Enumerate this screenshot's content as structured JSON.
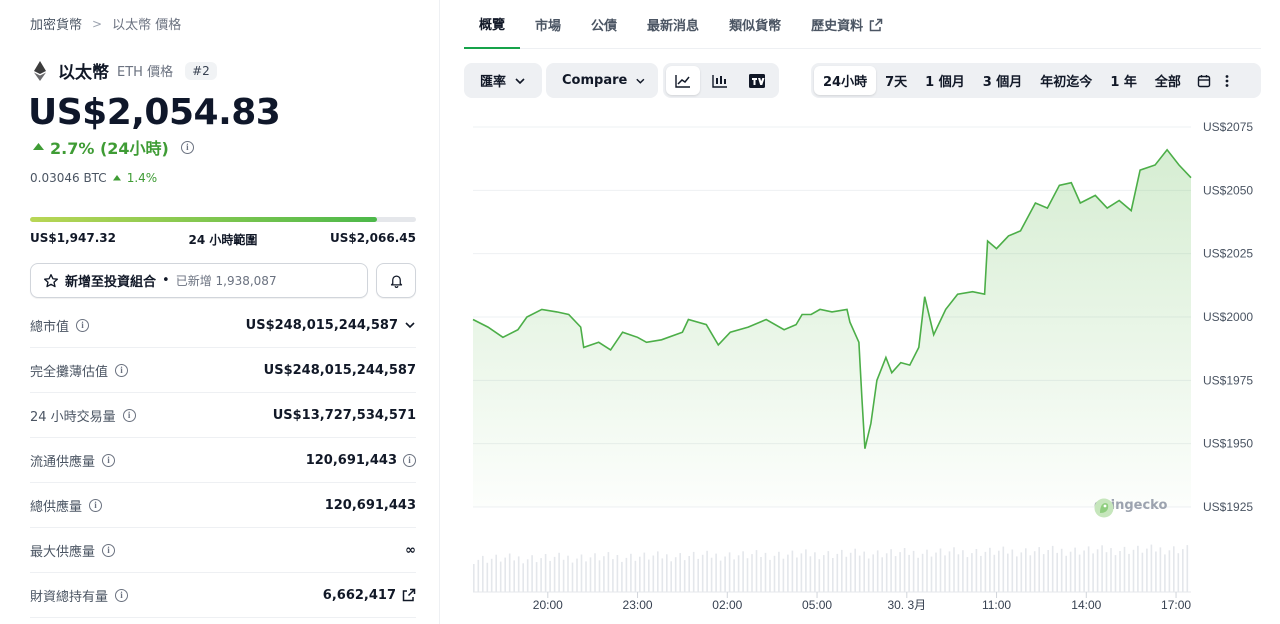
{
  "breadcrumb": {
    "root": "加密貨幣",
    "separator": ">",
    "current": "以太幣 價格"
  },
  "coin": {
    "name": "以太幣",
    "subtitle": "ETH 價格",
    "rank": "#2",
    "logo_icon": "ethereum-icon"
  },
  "price": "US$2,054.83",
  "change_24h": "2.7% (24小時)",
  "btc": {
    "price": "0.03046 BTC",
    "change": "1.4%"
  },
  "range": {
    "low": "US$1,947.32",
    "label": "24 小時範圍",
    "high": "US$2,066.45",
    "position": 0.9
  },
  "portfolio": {
    "label": "新增至投資組合",
    "dot": "•",
    "added": "已新增 1,938,087"
  },
  "stats": [
    {
      "label": "總市值",
      "value": "US$248,015,244,587",
      "suffix_icon": "chevron-down-icon"
    },
    {
      "label": "完全攤薄估值",
      "value": "US$248,015,244,587",
      "suffix_icon": ""
    },
    {
      "label": "24 小時交易量",
      "value": "US$13,727,534,571",
      "suffix_icon": ""
    },
    {
      "label": "流通供應量",
      "value": "120,691,443",
      "suffix_icon": "info-icon"
    },
    {
      "label": "總供應量",
      "value": "120,691,443",
      "suffix_icon": ""
    },
    {
      "label": "最大供應量",
      "value": "∞",
      "suffix_icon": ""
    },
    {
      "label": "財資總持有量",
      "value": "6,662,417",
      "suffix_icon": "external-link-icon"
    }
  ],
  "tabs": [
    "概覽",
    "市場",
    "公債",
    "最新消息",
    "類似貨幣",
    "歷史資料"
  ],
  "controls": {
    "rate": "匯率",
    "compare": "Compare",
    "ranges": [
      "24小時",
      "7天",
      "1 個月",
      "3 個月",
      "年初迄今",
      "1 年",
      "全部"
    ],
    "active_range": "24小時"
  },
  "watermark": "coingecko",
  "colors": {
    "accent": "#16a34a",
    "line": "#4cae48",
    "up": "#3f9c35"
  },
  "chart_data": {
    "type": "area",
    "y_ticks": [
      "US$2075",
      "US$2050",
      "US$2025",
      "US$2000",
      "US$1975",
      "US$1950",
      "US$1925"
    ],
    "y_tick_values": [
      2075,
      2050,
      2025,
      2000,
      1975,
      1950,
      1925
    ],
    "ylim": [
      1925,
      2075
    ],
    "x_ticks": [
      "20:00",
      "23:00",
      "02:00",
      "05:00",
      "30. 3月",
      "11:00",
      "14:00",
      "17:00"
    ],
    "x_tick_hours": [
      2.5,
      5.5,
      8.5,
      11.5,
      14.5,
      17.5,
      20.5,
      23.5
    ],
    "xlim": [
      0,
      24
    ],
    "series": [
      {
        "values": [
          [
            0,
            1999
          ],
          [
            0.5,
            1996
          ],
          [
            1,
            1992
          ],
          [
            1.5,
            1995
          ],
          [
            1.8,
            2000
          ],
          [
            2.3,
            2003
          ],
          [
            2.8,
            2002
          ],
          [
            3.2,
            2001
          ],
          [
            3.6,
            1996
          ],
          [
            3.7,
            1988
          ],
          [
            4.2,
            1990
          ],
          [
            4.6,
            1987
          ],
          [
            5.0,
            1994
          ],
          [
            5.5,
            1992
          ],
          [
            5.8,
            1990
          ],
          [
            6.3,
            1991
          ],
          [
            7.0,
            1994
          ],
          [
            7.2,
            1999
          ],
          [
            7.8,
            1997
          ],
          [
            8.2,
            1989
          ],
          [
            8.6,
            1994
          ],
          [
            9.2,
            1996
          ],
          [
            9.8,
            1999
          ],
          [
            10.4,
            1995
          ],
          [
            10.8,
            1997
          ],
          [
            11.0,
            2001
          ],
          [
            11.3,
            2001
          ],
          [
            11.6,
            2003
          ],
          [
            12.0,
            2002
          ],
          [
            12.5,
            2003
          ],
          [
            12.6,
            1998
          ],
          [
            12.9,
            1990
          ],
          [
            13.0,
            1968
          ],
          [
            13.1,
            1948
          ],
          [
            13.3,
            1958
          ],
          [
            13.5,
            1975
          ],
          [
            13.8,
            1984
          ],
          [
            14.0,
            1978
          ],
          [
            14.3,
            1982
          ],
          [
            14.6,
            1981
          ],
          [
            14.9,
            1988
          ],
          [
            15.1,
            2008
          ],
          [
            15.4,
            1993
          ],
          [
            15.8,
            2003
          ],
          [
            16.2,
            2009
          ],
          [
            16.7,
            2010
          ],
          [
            17.1,
            2009
          ],
          [
            17.2,
            2030
          ],
          [
            17.5,
            2027
          ],
          [
            17.9,
            2032
          ],
          [
            18.3,
            2034
          ],
          [
            18.8,
            2045
          ],
          [
            19.2,
            2043
          ],
          [
            19.6,
            2052
          ],
          [
            20.0,
            2053
          ],
          [
            20.3,
            2045
          ],
          [
            20.8,
            2048
          ],
          [
            21.2,
            2043
          ],
          [
            21.6,
            2046
          ],
          [
            22.0,
            2042
          ],
          [
            22.3,
            2058
          ],
          [
            22.8,
            2060
          ],
          [
            23.2,
            2066
          ],
          [
            23.6,
            2060
          ],
          [
            24.0,
            2055
          ]
        ]
      }
    ],
    "volume_bars": 160,
    "grid": true
  }
}
